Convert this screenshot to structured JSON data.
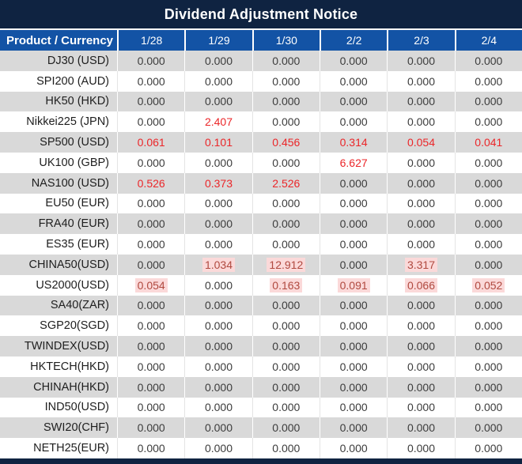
{
  "title": "Dividend Adjustment Notice",
  "colors": {
    "title_bar_bg": "#0F2341",
    "header_bg": "#1353A5",
    "row_alt_bg": "#D9D9D9",
    "row_bg": "#FFFFFF",
    "value_text": "#3C3C3C",
    "red_value": "#EB2629",
    "highlight_red_value": "#B0493F",
    "highlight_bg": "#FBD9D9"
  },
  "table": {
    "header": {
      "product_label": "Product / Currency",
      "dates": [
        "1/28",
        "1/29",
        "1/30",
        "2/2",
        "2/3",
        "2/4"
      ]
    },
    "rows": [
      {
        "product": "DJ30 (USD)",
        "values": [
          "0.000",
          "0.000",
          "0.000",
          "0.000",
          "0.000",
          "0.000"
        ],
        "styles": [
          "n",
          "n",
          "n",
          "n",
          "n",
          "n"
        ]
      },
      {
        "product": "SPI200 (AUD)",
        "values": [
          "0.000",
          "0.000",
          "0.000",
          "0.000",
          "0.000",
          "0.000"
        ],
        "styles": [
          "n",
          "n",
          "n",
          "n",
          "n",
          "n"
        ]
      },
      {
        "product": "HK50 (HKD)",
        "values": [
          "0.000",
          "0.000",
          "0.000",
          "0.000",
          "0.000",
          "0.000"
        ],
        "styles": [
          "n",
          "n",
          "n",
          "n",
          "n",
          "n"
        ]
      },
      {
        "product": "Nikkei225 (JPN)",
        "values": [
          "0.000",
          "2.407",
          "0.000",
          "0.000",
          "0.000",
          "0.000"
        ],
        "styles": [
          "n",
          "r",
          "n",
          "n",
          "n",
          "n"
        ]
      },
      {
        "product": "SP500 (USD)",
        "values": [
          "0.061",
          "0.101",
          "0.456",
          "0.314",
          "0.054",
          "0.041"
        ],
        "styles": [
          "r",
          "r",
          "r",
          "r",
          "r",
          "r"
        ]
      },
      {
        "product": "UK100 (GBP)",
        "values": [
          "0.000",
          "0.000",
          "0.000",
          "6.627",
          "0.000",
          "0.000"
        ],
        "styles": [
          "n",
          "n",
          "n",
          "r",
          "n",
          "n"
        ]
      },
      {
        "product": "NAS100 (USD)",
        "values": [
          "0.526",
          "0.373",
          "2.526",
          "0.000",
          "0.000",
          "0.000"
        ],
        "styles": [
          "r",
          "r",
          "r",
          "n",
          "n",
          "n"
        ]
      },
      {
        "product": "EU50 (EUR)",
        "values": [
          "0.000",
          "0.000",
          "0.000",
          "0.000",
          "0.000",
          "0.000"
        ],
        "styles": [
          "n",
          "n",
          "n",
          "n",
          "n",
          "n"
        ]
      },
      {
        "product": "FRA40 (EUR)",
        "values": [
          "0.000",
          "0.000",
          "0.000",
          "0.000",
          "0.000",
          "0.000"
        ],
        "styles": [
          "n",
          "n",
          "n",
          "n",
          "n",
          "n"
        ]
      },
      {
        "product": "ES35 (EUR)",
        "values": [
          "0.000",
          "0.000",
          "0.000",
          "0.000",
          "0.000",
          "0.000"
        ],
        "styles": [
          "n",
          "n",
          "n",
          "n",
          "n",
          "n"
        ]
      },
      {
        "product": "CHINA50(USD)",
        "values": [
          "0.000",
          "1.034",
          "12.912",
          "0.000",
          "3.317",
          "0.000"
        ],
        "styles": [
          "n",
          "h",
          "h",
          "n",
          "h",
          "n"
        ]
      },
      {
        "product": "US2000(USD)",
        "values": [
          "0.054",
          "0.000",
          "0.163",
          "0.091",
          "0.066",
          "0.052"
        ],
        "styles": [
          "h",
          "n",
          "h",
          "h",
          "h",
          "h"
        ]
      },
      {
        "product": "SA40(ZAR)",
        "values": [
          "0.000",
          "0.000",
          "0.000",
          "0.000",
          "0.000",
          "0.000"
        ],
        "styles": [
          "n",
          "n",
          "n",
          "n",
          "n",
          "n"
        ]
      },
      {
        "product": "SGP20(SGD)",
        "values": [
          "0.000",
          "0.000",
          "0.000",
          "0.000",
          "0.000",
          "0.000"
        ],
        "styles": [
          "n",
          "n",
          "n",
          "n",
          "n",
          "n"
        ]
      },
      {
        "product": "TWINDEX(USD)",
        "values": [
          "0.000",
          "0.000",
          "0.000",
          "0.000",
          "0.000",
          "0.000"
        ],
        "styles": [
          "n",
          "n",
          "n",
          "n",
          "n",
          "n"
        ]
      },
      {
        "product": "HKTECH(HKD)",
        "values": [
          "0.000",
          "0.000",
          "0.000",
          "0.000",
          "0.000",
          "0.000"
        ],
        "styles": [
          "n",
          "n",
          "n",
          "n",
          "n",
          "n"
        ]
      },
      {
        "product": "CHINAH(HKD)",
        "values": [
          "0.000",
          "0.000",
          "0.000",
          "0.000",
          "0.000",
          "0.000"
        ],
        "styles": [
          "n",
          "n",
          "n",
          "n",
          "n",
          "n"
        ]
      },
      {
        "product": "IND50(USD)",
        "values": [
          "0.000",
          "0.000",
          "0.000",
          "0.000",
          "0.000",
          "0.000"
        ],
        "styles": [
          "n",
          "n",
          "n",
          "n",
          "n",
          "n"
        ]
      },
      {
        "product": "SWI20(CHF)",
        "values": [
          "0.000",
          "0.000",
          "0.000",
          "0.000",
          "0.000",
          "0.000"
        ],
        "styles": [
          "n",
          "n",
          "n",
          "n",
          "n",
          "n"
        ]
      },
      {
        "product": "NETH25(EUR)",
        "values": [
          "0.000",
          "0.000",
          "0.000",
          "0.000",
          "0.000",
          "0.000"
        ],
        "styles": [
          "n",
          "n",
          "n",
          "n",
          "n",
          "n"
        ]
      }
    ]
  },
  "chart_data": {
    "type": "table",
    "title": "Dividend Adjustment Notice",
    "columns": [
      "Product / Currency",
      "1/28",
      "1/29",
      "1/30",
      "2/2",
      "2/3",
      "2/4"
    ],
    "rows": [
      [
        "DJ30 (USD)",
        "0.000",
        "0.000",
        "0.000",
        "0.000",
        "0.000",
        "0.000"
      ],
      [
        "SPI200 (AUD)",
        "0.000",
        "0.000",
        "0.000",
        "0.000",
        "0.000",
        "0.000"
      ],
      [
        "HK50 (HKD)",
        "0.000",
        "0.000",
        "0.000",
        "0.000",
        "0.000",
        "0.000"
      ],
      [
        "Nikkei225 (JPN)",
        "0.000",
        "2.407",
        "0.000",
        "0.000",
        "0.000",
        "0.000"
      ],
      [
        "SP500 (USD)",
        "0.061",
        "0.101",
        "0.456",
        "0.314",
        "0.054",
        "0.041"
      ],
      [
        "UK100 (GBP)",
        "0.000",
        "0.000",
        "0.000",
        "6.627",
        "0.000",
        "0.000"
      ],
      [
        "NAS100 (USD)",
        "0.526",
        "0.373",
        "2.526",
        "0.000",
        "0.000",
        "0.000"
      ],
      [
        "EU50 (EUR)",
        "0.000",
        "0.000",
        "0.000",
        "0.000",
        "0.000",
        "0.000"
      ],
      [
        "FRA40 (EUR)",
        "0.000",
        "0.000",
        "0.000",
        "0.000",
        "0.000",
        "0.000"
      ],
      [
        "ES35 (EUR)",
        "0.000",
        "0.000",
        "0.000",
        "0.000",
        "0.000",
        "0.000"
      ],
      [
        "CHINA50(USD)",
        "0.000",
        "1.034",
        "12.912",
        "0.000",
        "3.317",
        "0.000"
      ],
      [
        "US2000(USD)",
        "0.054",
        "0.000",
        "0.163",
        "0.091",
        "0.066",
        "0.052"
      ],
      [
        "SA40(ZAR)",
        "0.000",
        "0.000",
        "0.000",
        "0.000",
        "0.000",
        "0.000"
      ],
      [
        "SGP20(SGD)",
        "0.000",
        "0.000",
        "0.000",
        "0.000",
        "0.000",
        "0.000"
      ],
      [
        "TWINDEX(USD)",
        "0.000",
        "0.000",
        "0.000",
        "0.000",
        "0.000",
        "0.000"
      ],
      [
        "HKTECH(HKD)",
        "0.000",
        "0.000",
        "0.000",
        "0.000",
        "0.000",
        "0.000"
      ],
      [
        "CHINAH(HKD)",
        "0.000",
        "0.000",
        "0.000",
        "0.000",
        "0.000",
        "0.000"
      ],
      [
        "IND50(USD)",
        "0.000",
        "0.000",
        "0.000",
        "0.000",
        "0.000",
        "0.000"
      ],
      [
        "SWI20(CHF)",
        "0.000",
        "0.000",
        "0.000",
        "0.000",
        "0.000",
        "0.000"
      ],
      [
        "NETH25(EUR)",
        "0.000",
        "0.000",
        "0.000",
        "0.000",
        "0.000",
        "0.000"
      ]
    ],
    "red_cells_note": "red = dividend adjustment applied; some red cells shown with pink highlight",
    "layout": {
      "alternating_row_shading": true,
      "first_column_right_aligned": true
    }
  }
}
